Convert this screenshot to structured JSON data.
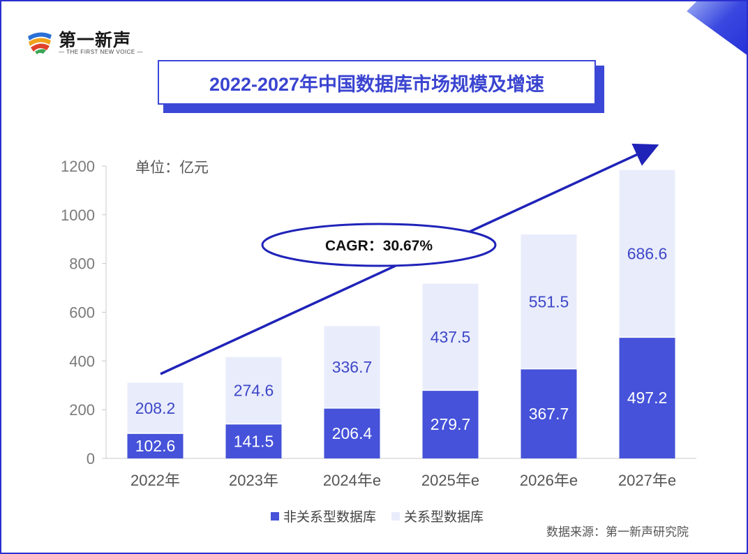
{
  "brand": {
    "name": "第一新声",
    "tagline": "— THE FIRST NEW VOICE —"
  },
  "chart_data": {
    "type": "bar",
    "stacked": true,
    "title": "2022-2027年中国数据库市场规模及增速",
    "unit_label": "单位：亿元",
    "categories": [
      "2022年",
      "2023年",
      "2024年e",
      "2025年e",
      "2026年e",
      "2027年e"
    ],
    "series": [
      {
        "name": "非关系型数据库",
        "values": [
          102.6,
          141.5,
          206.4,
          279.7,
          367.7,
          497.2
        ],
        "color": "#4552d9",
        "label_color": "#ffffff"
      },
      {
        "name": "关系型数据库",
        "values": [
          208.2,
          274.6,
          336.7,
          437.5,
          551.5,
          686.6
        ],
        "color": "#e9ecfb",
        "label_color": "#3d47c8"
      }
    ],
    "ylim": [
      0,
      1200
    ],
    "yticks": [
      0,
      200,
      400,
      600,
      800,
      1000,
      1200
    ],
    "legend_position": "bottom",
    "grid": false,
    "annotation": {
      "text": "CAGR：30.67%"
    },
    "source": "数据来源：第一新声研究院",
    "arrow_color": "#1f23b8"
  }
}
